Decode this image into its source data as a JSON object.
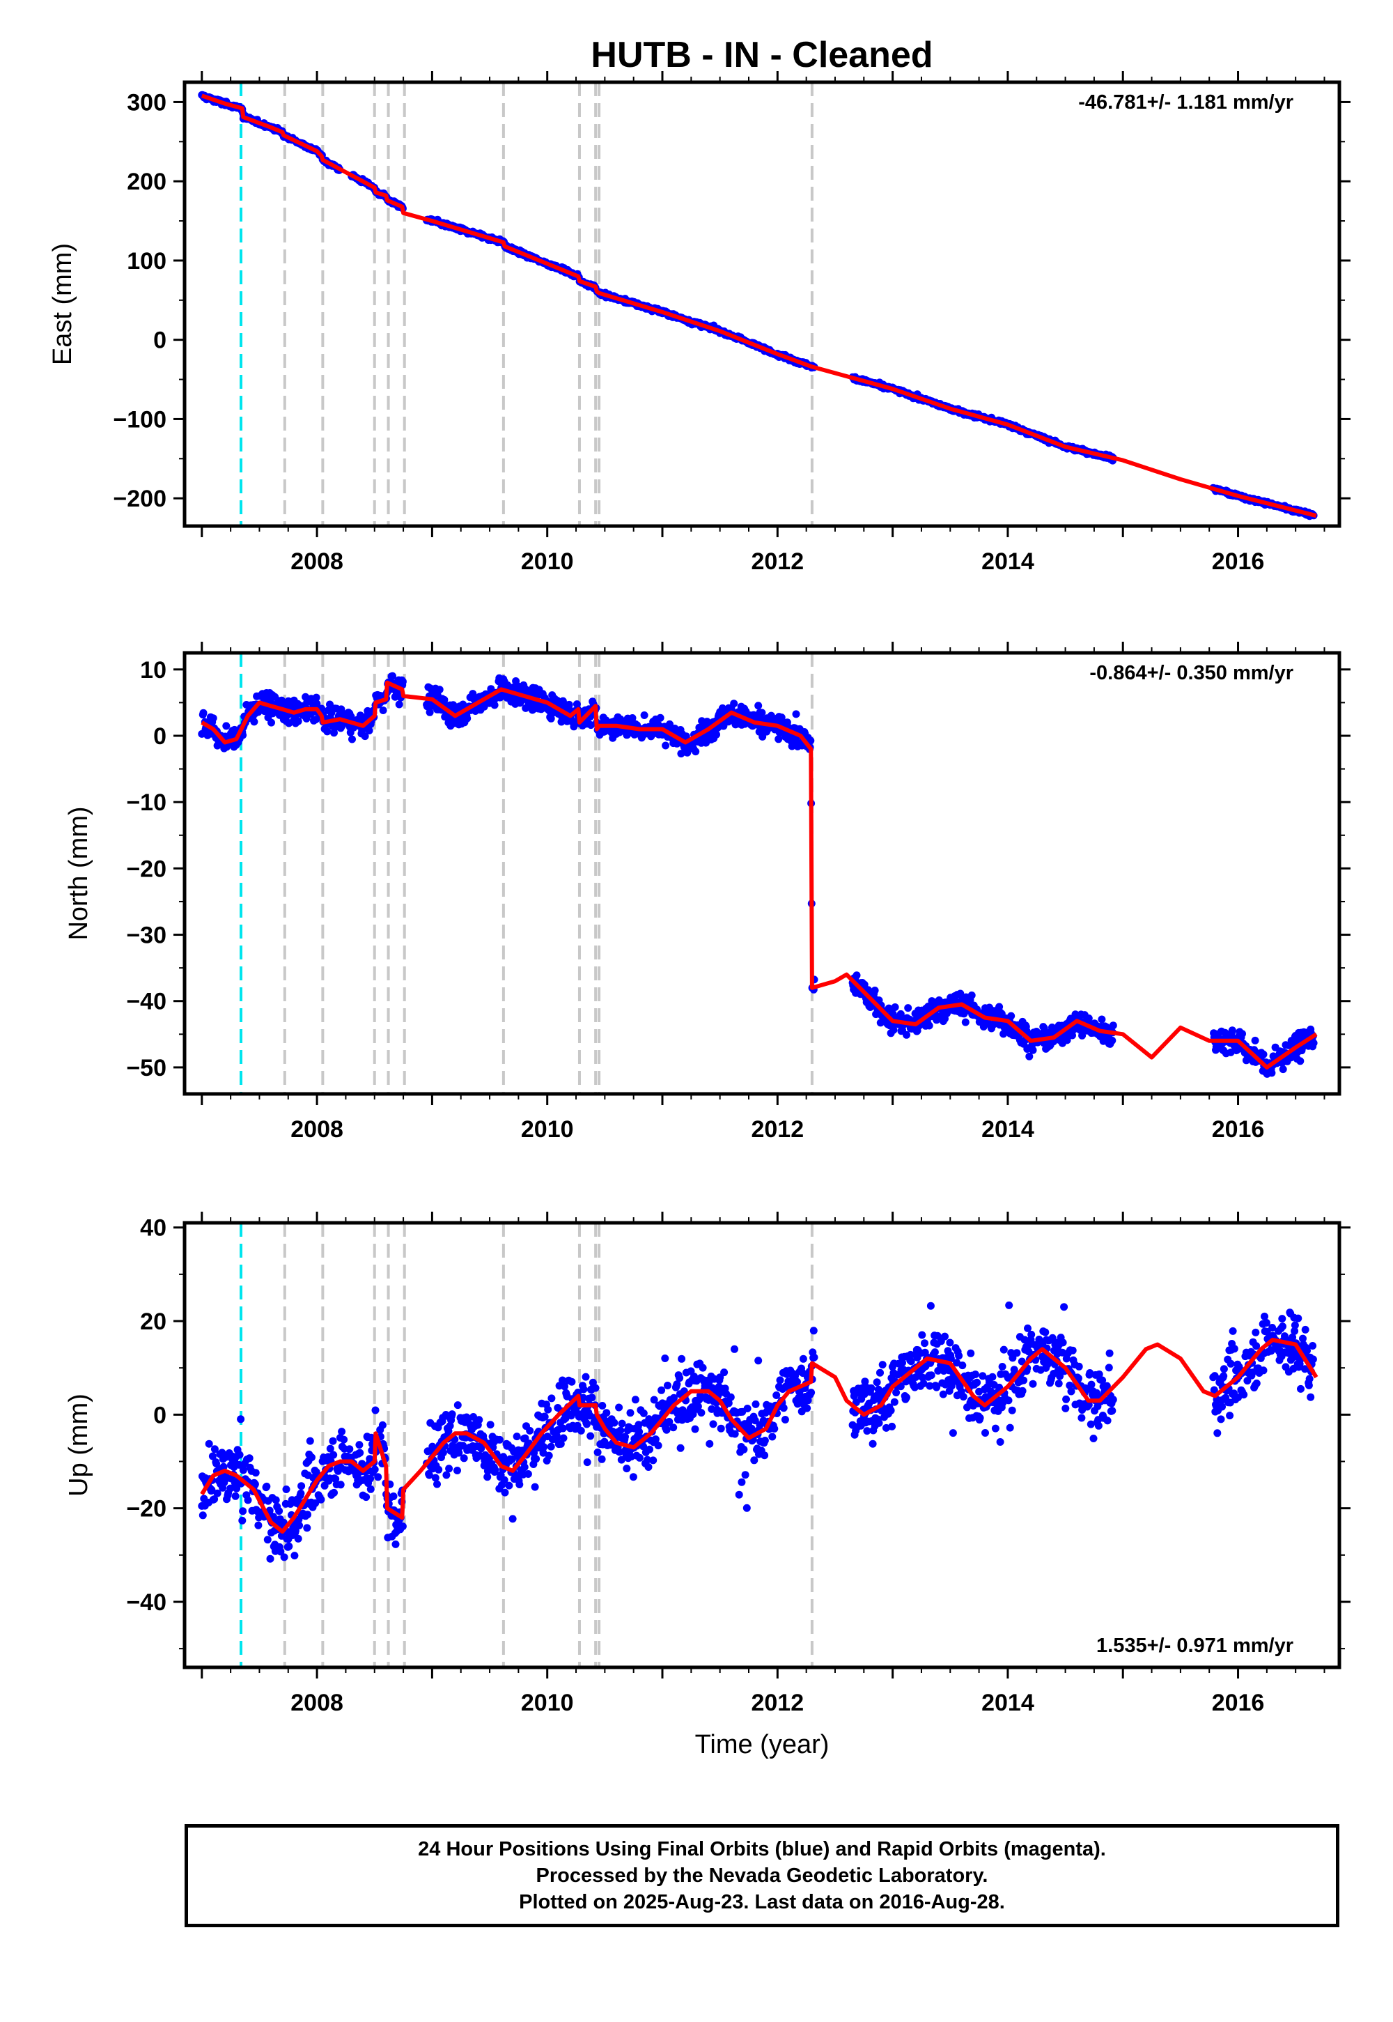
{
  "title": "HUTB  - IN - Cleaned",
  "xlabel": "Time (year)",
  "x_ticks": [
    "2008",
    "2010",
    "2012",
    "2014",
    "2016"
  ],
  "colors": {
    "data": "#0000ff",
    "model": "#ff0000",
    "antenna_change": "#00e5ee",
    "event": "#c8c8c8",
    "frame": "#000000"
  },
  "chart_data": [
    {
      "type": "scatter",
      "component": "East",
      "ylabel": "East (mm)",
      "rate": "-46.781+/- 1.181 mm/yr",
      "xlim": [
        2006.85,
        2016.88
      ],
      "ylim": [
        -235,
        325
      ],
      "y_ticks": [
        "300",
        "200",
        "100",
        "0",
        "−100",
        "−200"
      ],
      "y_tick_values": [
        300,
        200,
        100,
        0,
        -100,
        -200
      ],
      "data_gaps": [
        [
          2008.2,
          2008.3
        ],
        [
          2008.75,
          2008.95
        ],
        [
          2012.32,
          2012.65
        ],
        [
          2014.92,
          2015.78
        ]
      ],
      "model_line": {
        "x": [
          2007.0,
          2007.2,
          2007.35,
          2007.36,
          2007.6,
          2007.7,
          2007.71,
          2008.0,
          2008.04,
          2008.05,
          2008.5,
          2008.51,
          2008.6,
          2008.61,
          2008.74,
          2008.75,
          2009.0,
          2009.62,
          2009.63,
          2010.0,
          2010.27,
          2010.28,
          2010.42,
          2010.43,
          2010.45,
          2011.0,
          2011.5,
          2012.0,
          2012.3,
          2013.0,
          2013.5,
          2014.0,
          2014.5,
          2015.0,
          2015.5,
          2016.0,
          2016.68
        ],
        "y": [
          308,
          298,
          292,
          281,
          268,
          262,
          258,
          238,
          232,
          227,
          192,
          186,
          182,
          176,
          168,
          160,
          150,
          123,
          118,
          96,
          80,
          74,
          67,
          61,
          59,
          35,
          11,
          -18,
          -34,
          -62,
          -87,
          -107,
          -135,
          -152,
          -176,
          -197,
          -222
        ]
      },
      "points": {
        "x": [
          2007.0,
          2007.5,
          2008.0,
          2008.5,
          2009.0,
          2009.5,
          2010.0,
          2010.5,
          2011.0,
          2011.5,
          2012.0,
          2012.3,
          2012.7,
          2013.0,
          2013.5,
          2014.0,
          2014.5,
          2014.9,
          2015.8,
          2016.0,
          2016.68
        ],
        "y": [
          313,
          278,
          235,
          192,
          148,
          128,
          95,
          58,
          34,
          11,
          -18,
          -34,
          -55,
          -62,
          -87,
          -107,
          -134,
          -147,
          -188,
          -197,
          -222
        ]
      }
    },
    {
      "type": "scatter",
      "component": "North",
      "ylabel": "North (mm)",
      "rate": "-0.864+/- 0.350 mm/yr",
      "xlim": [
        2006.85,
        2016.88
      ],
      "ylim": [
        -54,
        12.5
      ],
      "y_ticks": [
        "10",
        "0",
        "−10",
        "−20",
        "−30",
        "−40",
        "−50"
      ],
      "y_tick_values": [
        10,
        0,
        -10,
        -20,
        -30,
        -40,
        -50
      ],
      "data_gaps": [
        [
          2008.75,
          2008.95
        ],
        [
          2012.32,
          2012.65
        ],
        [
          2014.92,
          2015.78
        ]
      ],
      "model_line": {
        "x": [
          2007.0,
          2007.1,
          2007.2,
          2007.3,
          2007.4,
          2007.5,
          2007.6,
          2007.7,
          2007.8,
          2007.9,
          2008.0,
          2008.04,
          2008.05,
          2008.2,
          2008.4,
          2008.5,
          2008.51,
          2008.6,
          2008.61,
          2008.74,
          2008.75,
          2009.0,
          2009.2,
          2009.4,
          2009.6,
          2009.7,
          2009.8,
          2010.0,
          2010.2,
          2010.27,
          2010.28,
          2010.42,
          2010.43,
          2010.45,
          2010.6,
          2010.8,
          2011.0,
          2011.2,
          2011.4,
          2011.6,
          2011.8,
          2012.0,
          2012.2,
          2012.29,
          2012.3,
          2012.5,
          2012.6,
          2012.8,
          2013.0,
          2013.2,
          2013.4,
          2013.6,
          2013.8,
          2014.0,
          2014.2,
          2014.4,
          2014.6,
          2014.8,
          2015.0,
          2015.25,
          2015.5,
          2015.75,
          2016.0,
          2016.25,
          2016.5,
          2016.68
        ],
        "y": [
          2,
          1,
          -1,
          -0.5,
          3,
          5,
          4.5,
          4,
          3.5,
          4,
          4,
          3,
          2,
          2.5,
          1.5,
          3,
          5,
          5.5,
          8,
          7,
          6,
          5.5,
          3,
          5,
          7,
          6.5,
          6,
          5,
          3,
          4,
          2,
          4.5,
          1,
          1.5,
          1.5,
          1,
          1,
          -1,
          1,
          3.5,
          2,
          1.5,
          0,
          -2,
          -38,
          -37,
          -36,
          -39.5,
          -43,
          -43.5,
          -41,
          -40.5,
          -42.5,
          -43,
          -46,
          -45.5,
          -43,
          -44.5,
          -45,
          -48.5,
          -44,
          -46,
          -46,
          -50,
          -47,
          -45
        ]
      },
      "points": {
        "x": [
          2007.0,
          2007.5,
          2008.0,
          2008.5,
          2009.0,
          2009.5,
          2010.0,
          2010.5,
          2011.0,
          2011.5,
          2012.0,
          2012.3,
          2012.7,
          2013.0,
          2013.5,
          2014.0,
          2014.5,
          2014.9,
          2015.8,
          2016.0,
          2016.68
        ],
        "y": [
          2,
          4,
          4,
          3,
          6,
          6,
          5,
          1,
          1,
          2,
          1,
          -2,
          -37,
          -41,
          -42,
          -44,
          -44,
          -45,
          -45,
          -47,
          -45
        ]
      }
    },
    {
      "type": "scatter",
      "component": "Up",
      "ylabel": "Up (mm)",
      "rate": "1.535+/- 0.971 mm/yr",
      "xlim": [
        2006.85,
        2016.88
      ],
      "ylim": [
        -54,
        41
      ],
      "y_ticks": [
        "40",
        "20",
        "0",
        "−20",
        "−40"
      ],
      "y_tick_values": [
        40,
        20,
        0,
        -20,
        -40
      ],
      "data_gaps": [
        [
          2008.75,
          2008.95
        ],
        [
          2012.32,
          2012.65
        ],
        [
          2014.92,
          2015.78
        ]
      ],
      "model_line": {
        "x": [
          2007.0,
          2007.1,
          2007.2,
          2007.3,
          2007.45,
          2007.6,
          2007.7,
          2007.8,
          2007.9,
          2008.0,
          2008.1,
          2008.2,
          2008.3,
          2008.4,
          2008.5,
          2008.51,
          2008.6,
          2008.61,
          2008.74,
          2008.75,
          2008.9,
          2009.0,
          2009.1,
          2009.2,
          2009.3,
          2009.45,
          2009.6,
          2009.7,
          2009.8,
          2009.95,
          2010.1,
          2010.27,
          2010.28,
          2010.42,
          2010.43,
          2010.5,
          2010.6,
          2010.75,
          2010.9,
          2011.0,
          2011.1,
          2011.25,
          2011.4,
          2011.5,
          2011.6,
          2011.75,
          2011.9,
          2012.0,
          2012.1,
          2012.29,
          2012.3,
          2012.5,
          2012.6,
          2012.75,
          2012.9,
          2013.0,
          2013.2,
          2013.3,
          2013.5,
          2013.7,
          2013.8,
          2014.0,
          2014.2,
          2014.3,
          2014.5,
          2014.7,
          2014.8,
          2015.0,
          2015.2,
          2015.3,
          2015.5,
          2015.7,
          2015.8,
          2016.0,
          2016.2,
          2016.3,
          2016.5,
          2016.68
        ],
        "y": [
          -17,
          -13,
          -12,
          -13,
          -16,
          -23,
          -25,
          -22,
          -18,
          -14,
          -11,
          -10,
          -10,
          -12,
          -10,
          -4,
          -11,
          -20,
          -22,
          -16,
          -12,
          -9,
          -6,
          -4,
          -4,
          -6,
          -11,
          -12,
          -9,
          -4,
          0,
          4,
          2,
          2,
          0,
          -3,
          -6,
          -7,
          -4,
          -1,
          2,
          5,
          5,
          3,
          -1,
          -5,
          -3,
          2,
          5,
          7,
          11,
          8,
          3,
          0,
          2,
          6,
          10,
          12,
          11,
          4,
          2,
          6,
          12,
          14,
          10,
          3,
          3,
          8,
          14,
          15,
          12,
          5,
          4,
          8,
          14,
          16,
          15,
          8
        ]
      },
      "points": {
        "x": [
          2007.0,
          2007.5,
          2008.0,
          2008.5,
          2009.0,
          2009.5,
          2010.0,
          2010.5,
          2011.0,
          2011.5,
          2012.0,
          2012.3,
          2012.7,
          2013.0,
          2013.5,
          2014.0,
          2014.5,
          2014.9,
          2015.8,
          2016.0,
          2016.68
        ],
        "y": [
          -15,
          -16,
          -16,
          -8,
          -9,
          -5,
          -2,
          -4,
          0,
          3,
          0,
          5,
          3,
          6,
          8,
          5,
          10,
          5,
          6,
          8,
          10
        ]
      }
    }
  ],
  "antenna_change_years": [
    2007.34
  ],
  "event_years": [
    2007.72,
    2008.05,
    2008.5,
    2008.62,
    2008.76,
    2009.62,
    2010.28,
    2010.42,
    2010.45,
    2012.3
  ],
  "caption": [
    "24 Hour Positions Using Final Orbits (blue) and Rapid Orbits (magenta).",
    "Processed by the Nevada Geodetic Laboratory.",
    "Plotted on 2025-Aug-23. Last data on 2016-Aug-28."
  ]
}
